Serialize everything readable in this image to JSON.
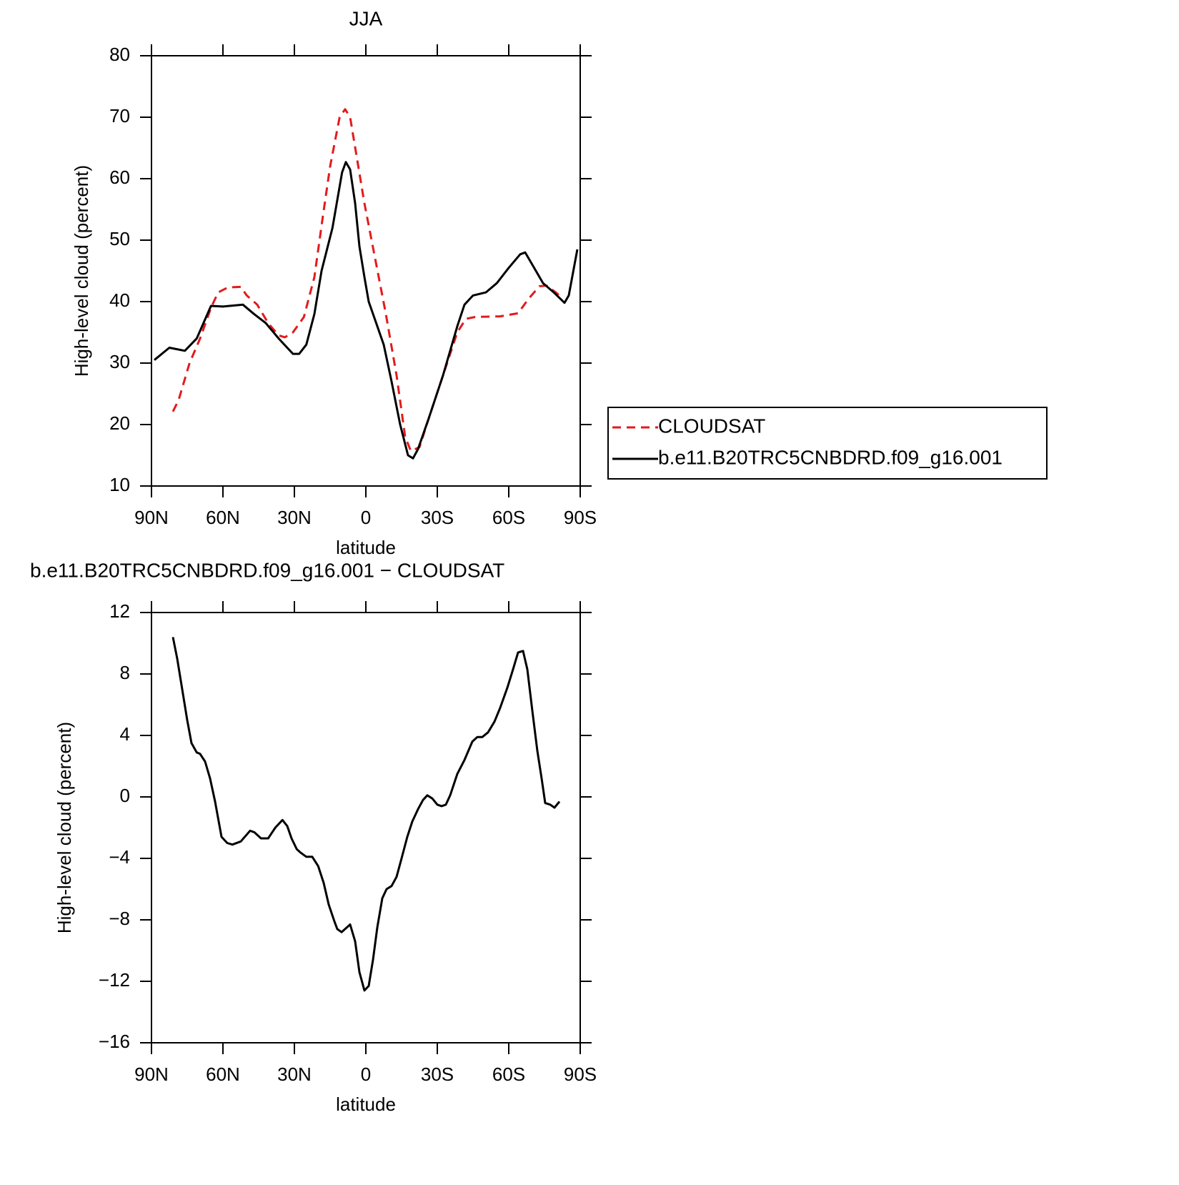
{
  "chart_data": [
    {
      "type": "line",
      "title": "JJA",
      "xlabel": "latitude",
      "ylabel": "High-level cloud (percent)",
      "xlim": [
        90,
        -90
      ],
      "xticks": [
        {
          "value": 90,
          "label": "90N"
        },
        {
          "value": 60,
          "label": "60N"
        },
        {
          "value": 30,
          "label": "30N"
        },
        0,
        {
          "value": -30,
          "label": "30S"
        },
        {
          "value": -60,
          "label": "60S"
        },
        {
          "value": -90,
          "label": "90S"
        }
      ],
      "ylim": [
        10,
        80
      ],
      "yticks": [
        10,
        20,
        30,
        40,
        50,
        60,
        70,
        80
      ],
      "legend": "right",
      "series": [
        {
          "name": "CLOUDSAT",
          "color": "#e31a1c",
          "dashed": true,
          "x": [
            81,
            78.6,
            74,
            69.6,
            65,
            62,
            58,
            52.5,
            50,
            45.6,
            41,
            36.6,
            34,
            30.6,
            26,
            21.6,
            18,
            15,
            11,
            8.7,
            6.6,
            3.6,
            0.6,
            -3.9,
            -8.4,
            -12.9,
            -16.5,
            -18.9,
            -22.5,
            -26.4,
            -32.4,
            -38.4,
            -42,
            -45.9,
            -56.4,
            -63.9,
            -68.4,
            -72.9,
            -75.9,
            -80.4,
            -81.9
          ],
          "values": [
            22.1,
            24,
            30,
            34,
            39,
            41.5,
            42.3,
            42.4,
            41,
            39.5,
            36.5,
            34.5,
            34.2,
            35,
            37.5,
            44,
            54,
            62,
            70,
            71.3,
            70,
            63,
            56,
            47,
            38,
            28,
            18,
            15.7,
            16.3,
            21,
            28,
            35,
            37.2,
            37.5,
            37.6,
            38.1,
            40.5,
            42.5,
            42.6,
            41.3,
            40.5
          ]
        },
        {
          "name": "b.e11.B20TRC5CNBDRD.f09_g16.001",
          "color": "#000000",
          "dashed": false,
          "x": [
            88.8,
            82.5,
            76,
            71,
            65,
            60,
            51.6,
            47,
            42,
            36.6,
            30.6,
            28,
            25,
            21.6,
            18.6,
            14,
            10,
            8.4,
            6.6,
            4.5,
            2.7,
            0.6,
            -1.2,
            -3.9,
            -7.5,
            -10.8,
            -14.4,
            -17.7,
            -19.8,
            -21.9,
            -26.4,
            -32.4,
            -38.4,
            -41.4,
            -45,
            -50.4,
            -55,
            -60,
            -64.8,
            -66.9,
            -69.9,
            -74.4,
            -78.9,
            -83.4,
            -85.2,
            -88.8
          ],
          "values": [
            30.5,
            32.5,
            32,
            34,
            39.3,
            39.2,
            39.5,
            38,
            36.5,
            34,
            31.5,
            31.5,
            33,
            38,
            45,
            52,
            61,
            62.7,
            61.5,
            56,
            49,
            44,
            40,
            37,
            33,
            27,
            20,
            15,
            14.5,
            16,
            21,
            28,
            36,
            39.5,
            41,
            41.5,
            43,
            45.5,
            47.7,
            48,
            46,
            43,
            41.5,
            39.8,
            41,
            48.5
          ]
        }
      ]
    },
    {
      "type": "line",
      "title": "b.e11.B20TRC5CNBDRD.f09_g16.001 − CLOUDSAT",
      "xlabel": "latitude",
      "ylabel": "High-level cloud (percent)",
      "xlim": [
        90,
        -90
      ],
      "xticks": [
        {
          "value": 90,
          "label": "90N"
        },
        {
          "value": 60,
          "label": "60N"
        },
        {
          "value": 30,
          "label": "30N"
        },
        0,
        {
          "value": -30,
          "label": "30S"
        },
        {
          "value": -60,
          "label": "60S"
        },
        {
          "value": -90,
          "label": "90S"
        }
      ],
      "ylim": [
        -16,
        12
      ],
      "yticks": [
        {
          "value": -16,
          "label": "−16"
        },
        {
          "value": -12,
          "label": "−12"
        },
        {
          "value": -8,
          "label": "−8"
        },
        {
          "value": -4,
          "label": "−4"
        },
        0,
        4,
        8,
        12
      ],
      "color": "#000000",
      "x": [
        81,
        79.2,
        75,
        73.2,
        71,
        69.6,
        67.5,
        65.4,
        63.3,
        60.6,
        58.2,
        56,
        52.5,
        48.6,
        46.8,
        44,
        41,
        38,
        35,
        33,
        31.2,
        29,
        27.6,
        25,
        22.5,
        20,
        17.7,
        15.6,
        13.2,
        12,
        10.2,
        6.6,
        4.5,
        2.7,
        0.6,
        -1.2,
        -3,
        -4.8,
        -6.9,
        -8.7,
        -10.8,
        -12.9,
        -15,
        -17.4,
        -19.5,
        -21.9,
        -24,
        -25.8,
        -27.9,
        -30,
        -31.8,
        -33.6,
        -35.4,
        -38.4,
        -41.4,
        -44.7,
        -46.8,
        -48.9,
        -51.3,
        -54,
        -56.4,
        -59.4,
        -61.8,
        -63.9,
        -66,
        -67.8,
        -69.9,
        -72,
        -73.8,
        -75.3,
        -77.4,
        -79.2,
        -81.3
      ],
      "values": [
        10.4,
        9,
        5,
        3.5,
        2.9,
        2.8,
        2.3,
        1.2,
        -0.3,
        -2.6,
        -3,
        -3.1,
        -2.9,
        -2.2,
        -2.3,
        -2.7,
        -2.7,
        -2,
        -1.5,
        -1.9,
        -2.7,
        -3.4,
        -3.6,
        -3.9,
        -3.9,
        -4.5,
        -5.6,
        -7,
        -8.1,
        -8.6,
        -8.8,
        -8.3,
        -9.4,
        -11.4,
        -12.6,
        -12.3,
        -10.6,
        -8.5,
        -6.6,
        -6,
        -5.8,
        -5.2,
        -4,
        -2.6,
        -1.6,
        -0.8,
        -0.2,
        0.1,
        -0.1,
        -0.5,
        -0.6,
        -0.5,
        0.1,
        1.5,
        2.4,
        3.6,
        3.9,
        3.9,
        4.2,
        4.9,
        5.8,
        7.1,
        8.3,
        9.4,
        9.5,
        8.3,
        5.6,
        3,
        1.2,
        -0.4,
        -0.5,
        -0.7,
        -0.3
      ]
    }
  ]
}
